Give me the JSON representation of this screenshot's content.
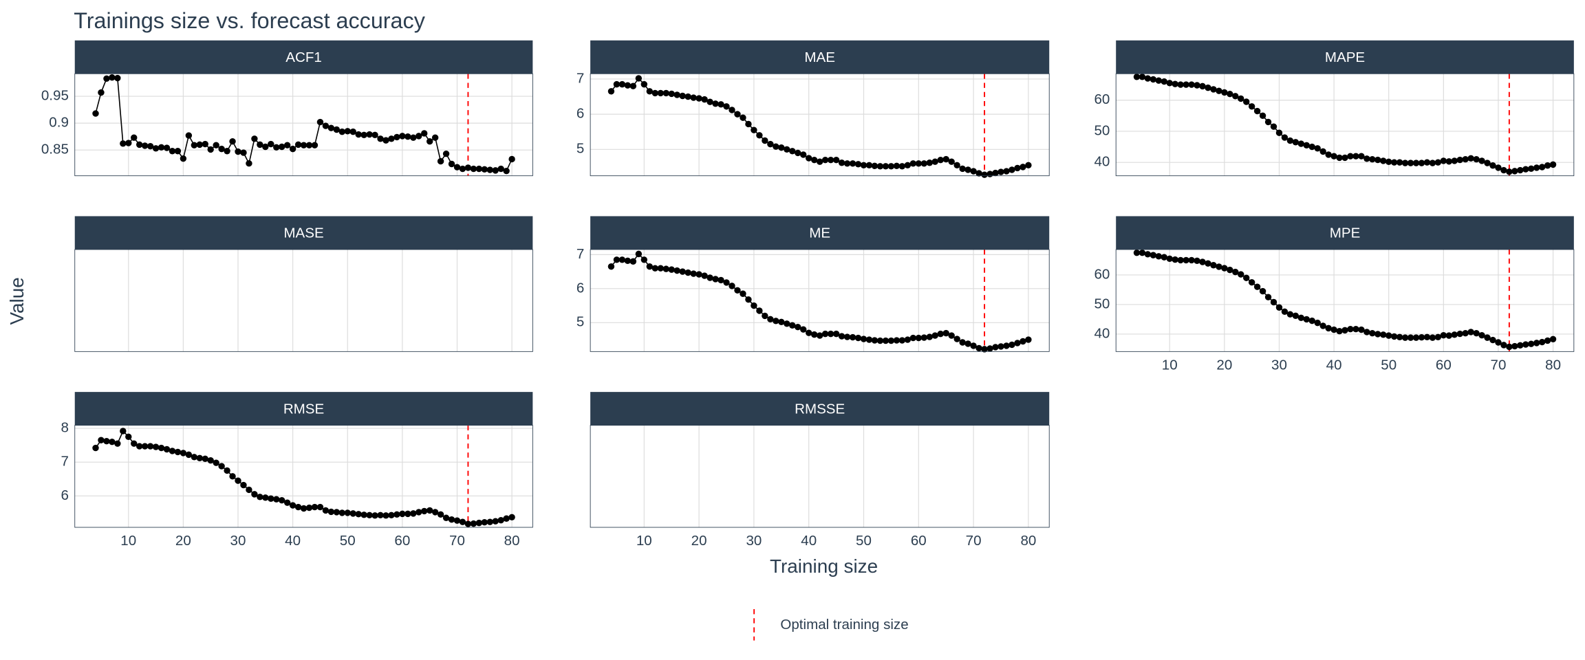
{
  "chart_data": {
    "type": "line",
    "title": "Trainings size vs. forecast accuracy",
    "x_label": "Training size",
    "y_label": "Value",
    "x": [
      4,
      5,
      6,
      7,
      8,
      9,
      10,
      11,
      12,
      13,
      14,
      15,
      16,
      17,
      18,
      19,
      20,
      21,
      22,
      23,
      24,
      25,
      26,
      27,
      28,
      29,
      30,
      31,
      32,
      33,
      34,
      35,
      36,
      37,
      38,
      39,
      40,
      41,
      42,
      43,
      44,
      45,
      46,
      47,
      48,
      49,
      50,
      51,
      52,
      53,
      54,
      55,
      56,
      57,
      58,
      59,
      60,
      61,
      62,
      63,
      64,
      65,
      66,
      67,
      68,
      69,
      70,
      71,
      72,
      73,
      74,
      75,
      76,
      77,
      78,
      79,
      80
    ],
    "xlim": [
      0.2,
      83.8
    ],
    "xticks": [
      10,
      20,
      30,
      40,
      50,
      60,
      70,
      80
    ],
    "grid": true,
    "color": "#000000",
    "reference_line": {
      "x": 72,
      "name": "Optimal training size",
      "color": "#ff0000"
    },
    "facets": [
      {
        "title": "ACF1",
        "ylim": [
          0.802,
          0.992
        ],
        "yticks": [
          0.85,
          0.9,
          0.95
        ],
        "values": [
          0.918,
          0.957,
          0.983,
          0.985,
          0.984,
          0.862,
          0.863,
          0.873,
          0.86,
          0.858,
          0.857,
          0.853,
          0.855,
          0.854,
          0.848,
          0.848,
          0.834,
          0.877,
          0.859,
          0.86,
          0.861,
          0.851,
          0.859,
          0.852,
          0.848,
          0.866,
          0.847,
          0.845,
          0.825,
          0.871,
          0.86,
          0.856,
          0.861,
          0.855,
          0.856,
          0.859,
          0.852,
          0.86,
          0.859,
          0.859,
          0.859,
          0.902,
          0.895,
          0.891,
          0.888,
          0.884,
          0.885,
          0.884,
          0.879,
          0.878,
          0.879,
          0.878,
          0.871,
          0.868,
          0.871,
          0.874,
          0.876,
          0.875,
          0.873,
          0.876,
          0.881,
          0.866,
          0.873,
          0.829,
          0.843,
          0.824,
          0.818,
          0.815,
          0.817,
          0.815,
          0.815,
          0.814,
          0.813,
          0.812,
          0.815,
          0.811,
          0.833
        ]
      },
      {
        "title": "MAE",
        "ylim": [
          4.25,
          7.15
        ],
        "yticks": [
          5,
          6,
          7
        ],
        "values": [
          6.65,
          6.85,
          6.85,
          6.82,
          6.8,
          7.02,
          6.85,
          6.65,
          6.6,
          6.6,
          6.6,
          6.58,
          6.55,
          6.52,
          6.5,
          6.47,
          6.45,
          6.42,
          6.35,
          6.3,
          6.28,
          6.22,
          6.12,
          6.0,
          5.9,
          5.72,
          5.55,
          5.4,
          5.25,
          5.15,
          5.08,
          5.05,
          5.0,
          4.95,
          4.9,
          4.85,
          4.75,
          4.7,
          4.65,
          4.7,
          4.7,
          4.7,
          4.62,
          4.6,
          4.6,
          4.58,
          4.55,
          4.55,
          4.53,
          4.52,
          4.52,
          4.52,
          4.53,
          4.52,
          4.55,
          4.6,
          4.6,
          4.6,
          4.62,
          4.65,
          4.7,
          4.72,
          4.65,
          4.55,
          4.45,
          4.42,
          4.38,
          4.32,
          4.28,
          4.3,
          4.33,
          4.36,
          4.38,
          4.42,
          4.47,
          4.5,
          4.55
        ]
      },
      {
        "title": "MAPE",
        "ylim": [
          35.7,
          68.5
        ],
        "yticks": [
          40,
          50,
          60
        ],
        "values": [
          67.5,
          67.5,
          67,
          66.7,
          66.3,
          66,
          65.5,
          65.2,
          65,
          65,
          65,
          64.8,
          64.5,
          64,
          63.5,
          63,
          62.5,
          62,
          61.3,
          60.5,
          59.5,
          58,
          56.5,
          55,
          53,
          51.5,
          49.5,
          48,
          47,
          46.5,
          46,
          45.5,
          45,
          44.5,
          43.5,
          42.5,
          42,
          41.5,
          41.5,
          42,
          42,
          42,
          41.2,
          41,
          40.8,
          40.5,
          40.2,
          40,
          40,
          39.8,
          39.8,
          39.8,
          39.8,
          40,
          39.8,
          40,
          40.5,
          40.3,
          40.5,
          40.8,
          41,
          41.3,
          41,
          40.5,
          39.8,
          39,
          38.3,
          37.5,
          37,
          37.2,
          37.5,
          37.8,
          38,
          38.3,
          38.5,
          39,
          39.3
        ]
      },
      {
        "title": "MASE"
      },
      {
        "title": "ME",
        "ylim": [
          4.15,
          7.15
        ],
        "yticks": [
          5,
          6,
          7
        ],
        "values": [
          6.65,
          6.85,
          6.85,
          6.82,
          6.8,
          7.02,
          6.85,
          6.65,
          6.6,
          6.6,
          6.58,
          6.56,
          6.53,
          6.5,
          6.47,
          6.44,
          6.42,
          6.38,
          6.32,
          6.28,
          6.25,
          6.18,
          6.08,
          5.95,
          5.85,
          5.68,
          5.5,
          5.35,
          5.2,
          5.1,
          5.05,
          5.02,
          4.97,
          4.92,
          4.87,
          4.8,
          4.7,
          4.65,
          4.62,
          4.67,
          4.67,
          4.67,
          4.6,
          4.58,
          4.57,
          4.55,
          4.52,
          4.5,
          4.48,
          4.47,
          4.47,
          4.47,
          4.48,
          4.48,
          4.5,
          4.55,
          4.55,
          4.56,
          4.58,
          4.62,
          4.67,
          4.69,
          4.62,
          4.52,
          4.42,
          4.38,
          4.32,
          4.25,
          4.22,
          4.24,
          4.28,
          4.3,
          4.32,
          4.35,
          4.4,
          4.45,
          4.5
        ]
      },
      {
        "title": "MPE",
        "ylim": [
          34.1,
          68.6
        ],
        "yticks": [
          40,
          50,
          60
        ],
        "values": [
          67.5,
          67.5,
          67,
          66.7,
          66.3,
          66,
          65.5,
          65.2,
          65,
          65,
          65,
          64.8,
          64.4,
          63.9,
          63.3,
          62.8,
          62.3,
          61.7,
          61,
          60.2,
          59,
          57.5,
          56,
          54.5,
          52.5,
          50.8,
          49,
          47.6,
          46.7,
          46.2,
          45.5,
          45,
          44.5,
          43.8,
          42.8,
          42,
          41.5,
          41,
          41.3,
          41.7,
          41.7,
          41.5,
          40.7,
          40.3,
          40,
          39.8,
          39.5,
          39.2,
          39,
          38.8,
          38.8,
          38.8,
          38.9,
          39,
          38.8,
          39,
          39.6,
          39.5,
          39.8,
          40.1,
          40.3,
          40.7,
          40.3,
          39.6,
          38.8,
          38,
          37.2,
          36.3,
          35.7,
          35.9,
          36.2,
          36.5,
          36.7,
          37,
          37.3,
          37.8,
          38.3
        ]
      },
      {
        "title": "RMSE",
        "ylim": [
          5.07,
          8.09
        ],
        "yticks": [
          6,
          7,
          8
        ],
        "values": [
          7.42,
          7.65,
          7.62,
          7.6,
          7.55,
          7.92,
          7.75,
          7.55,
          7.47,
          7.47,
          7.47,
          7.45,
          7.42,
          7.38,
          7.33,
          7.3,
          7.27,
          7.22,
          7.15,
          7.12,
          7.1,
          7.05,
          6.98,
          6.88,
          6.75,
          6.58,
          6.45,
          6.32,
          6.18,
          6.05,
          5.97,
          5.95,
          5.92,
          5.9,
          5.87,
          5.8,
          5.72,
          5.67,
          5.63,
          5.65,
          5.67,
          5.67,
          5.57,
          5.53,
          5.52,
          5.5,
          5.5,
          5.48,
          5.46,
          5.44,
          5.43,
          5.42,
          5.43,
          5.42,
          5.43,
          5.45,
          5.47,
          5.47,
          5.48,
          5.52,
          5.55,
          5.57,
          5.52,
          5.45,
          5.35,
          5.3,
          5.27,
          5.23,
          5.17,
          5.18,
          5.2,
          5.22,
          5.23,
          5.25,
          5.28,
          5.33,
          5.37
        ]
      },
      {
        "title": "RMSSE"
      }
    ]
  }
}
